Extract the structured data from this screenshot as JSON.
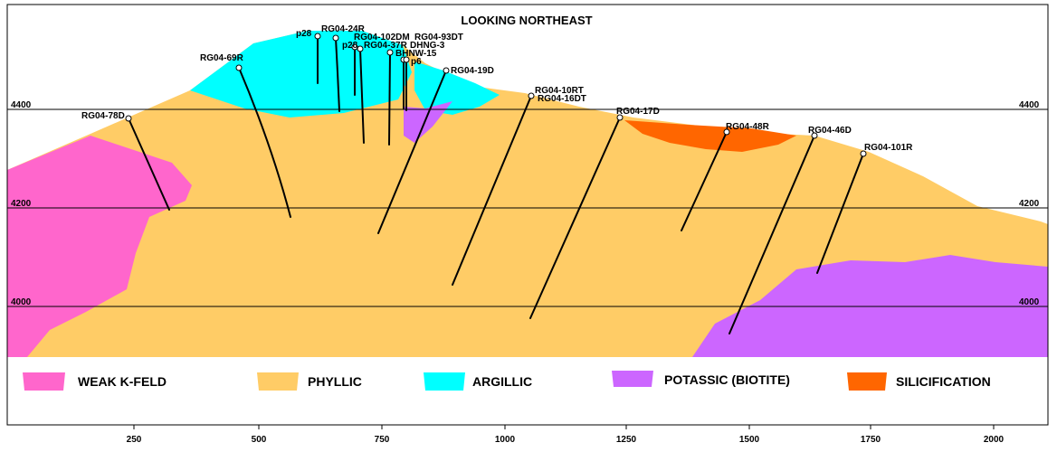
{
  "title": "LOOKING NORTHEAST",
  "colors": {
    "weak_kfeld": "#ff66cc",
    "phyllic": "#ffcc66",
    "argillic": "#00ffff",
    "potassic": "#cc66ff",
    "silicification": "#ff6600",
    "holes": "#000000",
    "frame": "#000000"
  },
  "elevation_labels": [
    "4400",
    "4200",
    "4000"
  ],
  "x_ticks": [
    "250",
    "500",
    "750",
    "1000",
    "1250",
    "1500",
    "1750",
    "2000"
  ],
  "holes": [
    "p28",
    "RG04-24R",
    "RG04-102DM",
    "RG04-93DT",
    "p28",
    "RG04-37R",
    "DHNG-3",
    "BHNW-15",
    "p6",
    "RG04-69R",
    "RG04-19D",
    "RG04-78D",
    "RG04-10RT",
    "RG04-16DT",
    "RG04-17D",
    "RG04-48R",
    "RG04-46D",
    "RG04-101R"
  ],
  "legend": [
    {
      "label": "WEAK K-FELD",
      "color": "#ff66cc"
    },
    {
      "label": "PHYLLIC",
      "color": "#ffcc66"
    },
    {
      "label": "ARGILLIC",
      "color": "#00ffff"
    },
    {
      "label": "POTASSIC (BIOTITE)",
      "color": "#cc66ff"
    },
    {
      "label": "SILICIFICATION",
      "color": "#ff6600"
    }
  ]
}
